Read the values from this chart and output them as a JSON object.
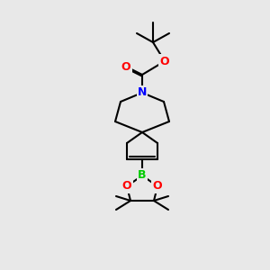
{
  "bg_color": "#e8e8e8",
  "line_color": "black",
  "line_width": 1.5,
  "atom_colors": {
    "N": "#0000ff",
    "O": "#ff0000",
    "B": "#00cc00"
  },
  "font_size": 9
}
